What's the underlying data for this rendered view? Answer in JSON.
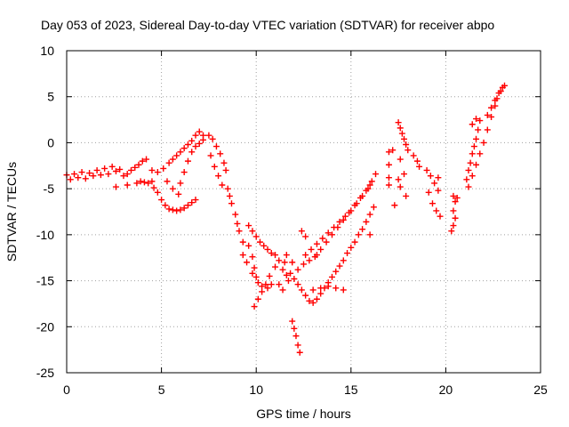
{
  "chart_data": {
    "type": "scatter",
    "title": "Day 053 of 2023, Sidereal Day-to-day VTEC variation (SDTVAR) for receiver abpo",
    "xlabel": "GPS time / hours",
    "ylabel": "SDTVAR / TECUs",
    "xlim": [
      0,
      25
    ],
    "ylim": [
      -25,
      10
    ],
    "x_ticks": [
      "0",
      "5",
      "10",
      "15",
      "20",
      "25"
    ],
    "y_ticks": [
      "10",
      "5",
      "0",
      "-5",
      "-10",
      "-15",
      "-20",
      "-25"
    ],
    "grid": true,
    "legend": "none",
    "marker": "plus",
    "color": "#ff0000",
    "series": [
      {
        "values": [
          [
            0.0,
            -3.5
          ],
          [
            0.2,
            -4.0
          ],
          [
            0.4,
            -3.4
          ],
          [
            0.6,
            -3.8
          ],
          [
            0.8,
            -3.2
          ],
          [
            1.0,
            -3.9
          ],
          [
            1.2,
            -3.3
          ],
          [
            1.4,
            -3.6
          ],
          [
            1.6,
            -3.0
          ],
          [
            1.8,
            -3.5
          ],
          [
            2.0,
            -2.8
          ],
          [
            2.2,
            -3.4
          ],
          [
            2.4,
            -2.6
          ],
          [
            2.6,
            -3.1
          ],
          [
            2.8,
            -2.9
          ],
          [
            3.0,
            -3.6
          ],
          [
            3.2,
            -3.4
          ],
          [
            3.4,
            -3.0
          ],
          [
            3.6,
            -2.7
          ],
          [
            3.8,
            -2.4
          ],
          [
            4.0,
            -2.0
          ],
          [
            4.2,
            -1.8
          ],
          [
            2.6,
            -4.8
          ],
          [
            3.2,
            -4.6
          ],
          [
            3.7,
            -4.4
          ],
          [
            3.9,
            -4.2
          ],
          [
            4.1,
            -4.3
          ],
          [
            4.3,
            -4.4
          ],
          [
            4.5,
            -4.2
          ],
          [
            4.6,
            -4.9
          ],
          [
            4.8,
            -5.4
          ],
          [
            5.0,
            -6.2
          ],
          [
            5.2,
            -6.8
          ],
          [
            5.4,
            -7.2
          ],
          [
            5.6,
            -7.3
          ],
          [
            5.8,
            -7.4
          ],
          [
            6.0,
            -7.3
          ],
          [
            6.2,
            -7.1
          ],
          [
            6.4,
            -6.8
          ],
          [
            6.6,
            -6.5
          ],
          [
            6.8,
            -6.2
          ],
          [
            4.5,
            -3.0
          ],
          [
            4.8,
            -3.2
          ],
          [
            5.1,
            -2.8
          ],
          [
            5.4,
            -2.2
          ],
          [
            5.6,
            -1.8
          ],
          [
            5.8,
            -1.4
          ],
          [
            6.0,
            -1.0
          ],
          [
            6.2,
            -0.6
          ],
          [
            6.4,
            -0.2
          ],
          [
            6.6,
            0.2
          ],
          [
            6.8,
            0.8
          ],
          [
            7.0,
            1.2
          ],
          [
            7.2,
            0.8
          ],
          [
            5.3,
            -4.2
          ],
          [
            5.6,
            -5.0
          ],
          [
            5.9,
            -5.6
          ],
          [
            6.0,
            -4.4
          ],
          [
            6.2,
            -3.2
          ],
          [
            6.4,
            -2.0
          ],
          [
            6.6,
            -1.0
          ],
          [
            6.8,
            -0.4
          ],
          [
            7.0,
            -0.1
          ],
          [
            7.2,
            0.3
          ],
          [
            7.5,
            0.8
          ],
          [
            7.7,
            0.4
          ],
          [
            7.9,
            -0.4
          ],
          [
            8.1,
            -1.2
          ],
          [
            8.3,
            -2.2
          ],
          [
            8.4,
            -3.0
          ],
          [
            7.6,
            -1.4
          ],
          [
            7.8,
            -2.6
          ],
          [
            8.0,
            -3.6
          ],
          [
            8.2,
            -4.6
          ],
          [
            8.5,
            -5.0
          ],
          [
            8.6,
            -5.8
          ],
          [
            8.7,
            -6.6
          ],
          [
            8.9,
            -7.8
          ],
          [
            9.0,
            -8.8
          ],
          [
            9.1,
            -9.6
          ],
          [
            9.3,
            -10.8
          ],
          [
            9.6,
            -11.2
          ],
          [
            9.8,
            -12.4
          ],
          [
            9.9,
            -13.6
          ],
          [
            10.0,
            -14.6
          ],
          [
            10.1,
            -15.2
          ],
          [
            10.3,
            -15.6
          ],
          [
            10.6,
            -15.8
          ],
          [
            10.8,
            -15.4
          ],
          [
            9.9,
            -17.8
          ],
          [
            10.1,
            -17.0
          ],
          [
            10.3,
            -16.2
          ],
          [
            10.5,
            -15.4
          ],
          [
            9.5,
            -13.0
          ],
          [
            9.8,
            -14.2
          ],
          [
            9.3,
            -12.2
          ],
          [
            9.6,
            -9.0
          ],
          [
            9.8,
            -9.6
          ],
          [
            10.0,
            -10.2
          ],
          [
            10.2,
            -10.8
          ],
          [
            10.4,
            -11.2
          ],
          [
            10.6,
            -11.6
          ],
          [
            10.8,
            -12.0
          ],
          [
            11.0,
            -12.2
          ],
          [
            11.2,
            -12.8
          ],
          [
            11.4,
            -13.8
          ],
          [
            11.6,
            -14.4
          ],
          [
            11.7,
            -15.0
          ],
          [
            11.5,
            -13.0
          ],
          [
            11.6,
            -12.2
          ],
          [
            11.0,
            -13.5
          ],
          [
            10.7,
            -14.5
          ],
          [
            11.2,
            -15.4
          ],
          [
            11.4,
            -16.0
          ],
          [
            11.9,
            -19.4
          ],
          [
            12.0,
            -20.2
          ],
          [
            12.1,
            -21.0
          ],
          [
            12.2,
            -22.0
          ],
          [
            12.3,
            -22.8
          ],
          [
            11.8,
            -14.2
          ],
          [
            12.0,
            -14.8
          ],
          [
            12.2,
            -15.4
          ],
          [
            12.4,
            -16.0
          ],
          [
            12.6,
            -16.6
          ],
          [
            12.8,
            -17.2
          ],
          [
            13.0,
            -17.4
          ],
          [
            13.2,
            -17.0
          ],
          [
            13.4,
            -16.4
          ],
          [
            13.6,
            -15.8
          ],
          [
            13.8,
            -15.2
          ],
          [
            14.0,
            -14.6
          ],
          [
            14.2,
            -14.0
          ],
          [
            14.4,
            -13.4
          ],
          [
            14.6,
            -12.8
          ],
          [
            14.8,
            -12.0
          ],
          [
            15.0,
            -11.4
          ],
          [
            15.2,
            -10.8
          ],
          [
            15.4,
            -10.0
          ],
          [
            15.6,
            -9.4
          ],
          [
            15.8,
            -8.6
          ],
          [
            16.0,
            -7.8
          ],
          [
            16.2,
            -7.0
          ],
          [
            12.6,
            -12.2
          ],
          [
            12.9,
            -11.6
          ],
          [
            13.2,
            -11.0
          ],
          [
            13.5,
            -10.4
          ],
          [
            13.8,
            -9.8
          ],
          [
            14.1,
            -9.2
          ],
          [
            14.4,
            -8.6
          ],
          [
            14.7,
            -8.0
          ],
          [
            15.0,
            -7.4
          ],
          [
            15.3,
            -6.6
          ],
          [
            15.6,
            -5.8
          ],
          [
            15.9,
            -5.0
          ],
          [
            16.1,
            -4.2
          ],
          [
            16.3,
            -3.4
          ],
          [
            12.2,
            -13.8
          ],
          [
            12.5,
            -13.2
          ],
          [
            12.8,
            -12.8
          ],
          [
            13.1,
            -12.4
          ],
          [
            13.4,
            -11.6
          ],
          [
            13.7,
            -10.8
          ],
          [
            14.0,
            -10.0
          ],
          [
            14.3,
            -9.2
          ],
          [
            14.6,
            -8.4
          ],
          [
            14.9,
            -7.6
          ],
          [
            15.2,
            -6.8
          ],
          [
            15.5,
            -6.0
          ],
          [
            15.8,
            -5.2
          ],
          [
            16.0,
            -4.6
          ],
          [
            13.0,
            -16.0
          ],
          [
            13.4,
            -15.8
          ],
          [
            13.8,
            -15.6
          ],
          [
            14.2,
            -15.8
          ],
          [
            14.6,
            -16.0
          ],
          [
            12.4,
            -9.6
          ],
          [
            12.6,
            -10.2
          ],
          [
            13.2,
            -12.2
          ],
          [
            11.9,
            -13.0
          ],
          [
            16.0,
            -10.0
          ],
          [
            17.0,
            -1.0
          ],
          [
            17.2,
            -0.8
          ],
          [
            17.0,
            -2.4
          ],
          [
            17.0,
            -3.8
          ],
          [
            17.0,
            -4.6
          ],
          [
            17.3,
            -6.8
          ],
          [
            17.5,
            2.2
          ],
          [
            17.6,
            1.6
          ],
          [
            17.7,
            1.0
          ],
          [
            17.8,
            0.4
          ],
          [
            17.9,
            -0.2
          ],
          [
            18.0,
            -0.8
          ],
          [
            17.6,
            -1.8
          ],
          [
            17.8,
            -3.4
          ],
          [
            17.5,
            -4.0
          ],
          [
            17.6,
            -4.8
          ],
          [
            17.9,
            -5.8
          ],
          [
            18.3,
            -1.4
          ],
          [
            18.5,
            -2.0
          ],
          [
            18.6,
            -2.6
          ],
          [
            19.0,
            -3.0
          ],
          [
            19.2,
            -3.6
          ],
          [
            19.4,
            -4.4
          ],
          [
            19.6,
            -5.2
          ],
          [
            19.1,
            -5.4
          ],
          [
            19.3,
            -6.6
          ],
          [
            19.5,
            -7.4
          ],
          [
            19.7,
            -8.0
          ],
          [
            19.6,
            -3.8
          ],
          [
            20.4,
            -5.8
          ],
          [
            20.5,
            -6.4
          ],
          [
            20.4,
            -7.4
          ],
          [
            20.5,
            -8.2
          ],
          [
            20.4,
            -9.0
          ],
          [
            20.3,
            -9.6
          ],
          [
            20.6,
            -6.0
          ],
          [
            21.1,
            -4.0
          ],
          [
            21.2,
            -3.0
          ],
          [
            21.3,
            -2.2
          ],
          [
            21.4,
            -1.2
          ],
          [
            21.5,
            -0.4
          ],
          [
            21.6,
            0.4
          ],
          [
            21.7,
            1.4
          ],
          [
            21.8,
            2.4
          ],
          [
            21.2,
            -4.8
          ],
          [
            21.4,
            -3.6
          ],
          [
            21.6,
            -2.4
          ],
          [
            21.8,
            -1.2
          ],
          [
            22.0,
            0.0
          ],
          [
            22.2,
            1.4
          ],
          [
            22.4,
            2.8
          ],
          [
            22.6,
            4.0
          ],
          [
            22.2,
            3.0
          ],
          [
            22.4,
            3.8
          ],
          [
            22.6,
            4.6
          ],
          [
            22.8,
            5.4
          ],
          [
            23.0,
            6.0
          ],
          [
            22.7,
            4.8
          ],
          [
            22.9,
            5.6
          ],
          [
            23.1,
            6.2
          ],
          [
            21.4,
            2.0
          ],
          [
            21.6,
            2.6
          ]
        ]
      }
    ]
  }
}
